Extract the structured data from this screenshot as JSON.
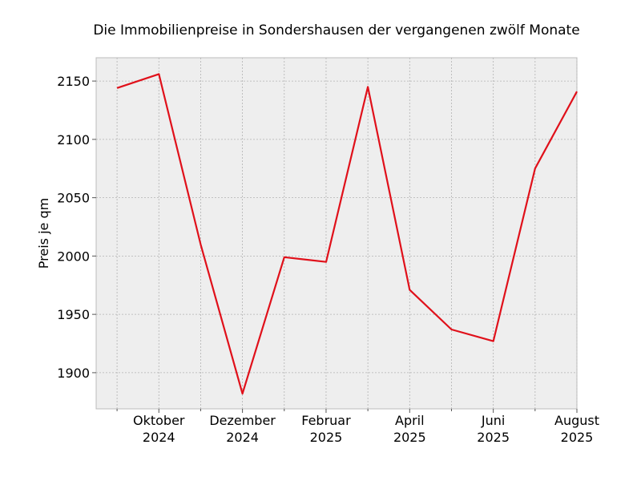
{
  "chart_data": {
    "type": "line",
    "title": "Die Immobilienpreise in Sondershausen der vergangenen zwölf Monate",
    "xlabel": "",
    "ylabel": "Preis je qm",
    "x": [
      "2024-09",
      "2024-10",
      "2024-11",
      "2024-12",
      "2025-01",
      "2025-02",
      "2025-03",
      "2025-04",
      "2025-05",
      "2025-06",
      "2025-07",
      "2025-08"
    ],
    "series": [
      {
        "values": [
          2144,
          2156,
          2010,
          1882,
          1999,
          1995,
          2145,
          1971,
          1937,
          1927,
          2075,
          2141
        ]
      }
    ],
    "x_tick_labels": [
      {
        "month": "Oktober",
        "year": "2024"
      },
      {
        "month": "Dezember",
        "year": "2024"
      },
      {
        "month": "Februar",
        "year": "2025"
      },
      {
        "month": "April",
        "year": "2025"
      },
      {
        "month": "Juni",
        "year": "2025"
      },
      {
        "month": "August",
        "year": "2025"
      }
    ],
    "y_ticks": [
      1900,
      1950,
      2000,
      2050,
      2100,
      2150
    ],
    "ylim": [
      1869,
      2170
    ],
    "xlim": [
      "2024-08-15",
      "2025-08-31"
    ],
    "grid": true,
    "line_color": "#e0101a",
    "plot_background": "#eeeeee"
  }
}
